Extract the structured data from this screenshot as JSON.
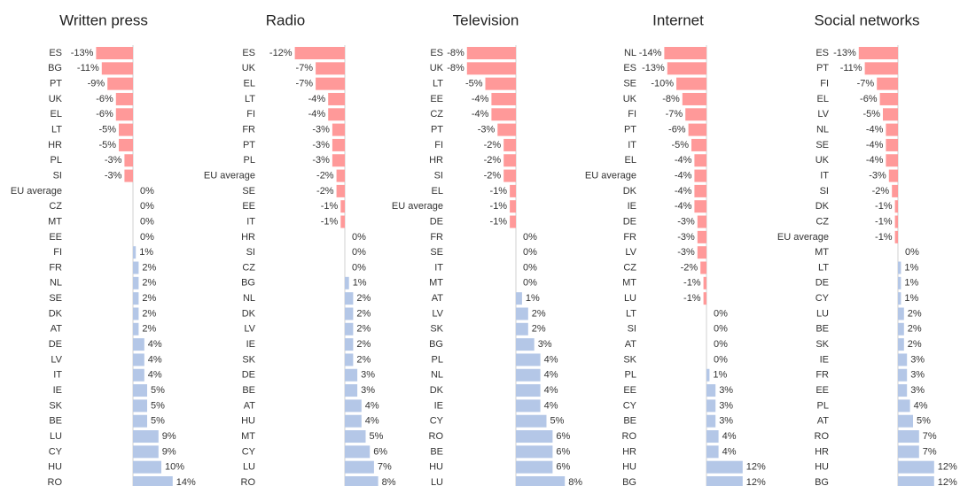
{
  "chart_data": [
    {
      "type": "bar",
      "orientation": "horizontal",
      "title": "Written press",
      "categories": [
        "ES",
        "BG",
        "PT",
        "UK",
        "EL",
        "LT",
        "HR",
        "PL",
        "SI",
        "EU average",
        "CZ",
        "MT",
        "EE",
        "FI",
        "FR",
        "NL",
        "SE",
        "DK",
        "AT",
        "DE",
        "LV",
        "IT",
        "IE",
        "SK",
        "BE",
        "LU",
        "CY",
        "HU",
        "RO"
      ],
      "values": [
        -13,
        -11,
        -9,
        -6,
        -6,
        -5,
        -5,
        -3,
        -3,
        0,
        0,
        0,
        0,
        1,
        2,
        2,
        2,
        2,
        2,
        4,
        4,
        4,
        5,
        5,
        5,
        9,
        9,
        10,
        14
      ],
      "value_labels": [
        "-13%",
        "-11%",
        "-9%",
        "-6%",
        "-6%",
        "-5%",
        "-5%",
        "-3%",
        "-3%",
        "0%",
        "0%",
        "0%",
        "0%",
        "1%",
        "2%",
        "2%",
        "2%",
        "2%",
        "2%",
        "4%",
        "4%",
        "4%",
        "5%",
        "5%",
        "5%",
        "9%",
        "9%",
        "10%",
        "14%"
      ],
      "xlim": [
        -15,
        15
      ],
      "negative_color": "#ff9999",
      "positive_color": "#b4c7e7"
    },
    {
      "type": "bar",
      "orientation": "horizontal",
      "title": "Radio",
      "categories": [
        "ES",
        "UK",
        "EL",
        "LT",
        "FI",
        "FR",
        "PT",
        "PL",
        "EU average",
        "SE",
        "EE",
        "IT",
        "HR",
        "SI",
        "CZ",
        "BG",
        "NL",
        "DK",
        "LV",
        "IE",
        "SK",
        "DE",
        "BE",
        "AT",
        "HU",
        "MT",
        "CY",
        "LU",
        "RO"
      ],
      "values": [
        -12,
        -7,
        -7,
        -4,
        -4,
        -3,
        -3,
        -3,
        -2,
        -2,
        -1,
        -1,
        0,
        0,
        0,
        1,
        2,
        2,
        2,
        2,
        2,
        3,
        3,
        4,
        4,
        5,
        6,
        7,
        8
      ],
      "value_labels": [
        "-12%",
        "-7%",
        "-7%",
        "-4%",
        "-4%",
        "-3%",
        "-3%",
        "-3%",
        "-2%",
        "-2%",
        "-1%",
        "-1%",
        "0%",
        "0%",
        "0%",
        "1%",
        "2%",
        "2%",
        "2%",
        "2%",
        "2%",
        "3%",
        "3%",
        "4%",
        "4%",
        "5%",
        "6%",
        "7%",
        "8%"
      ],
      "xlim": [
        -12,
        12
      ],
      "negative_color": "#ff9999",
      "positive_color": "#b4c7e7"
    },
    {
      "type": "bar",
      "orientation": "horizontal",
      "title": "Television",
      "categories": [
        "ES",
        "UK",
        "LT",
        "EE",
        "CZ",
        "PT",
        "FI",
        "HR",
        "SI",
        "EL",
        "EU average",
        "DE",
        "FR",
        "SE",
        "IT",
        "MT",
        "AT",
        "LV",
        "SK",
        "BG",
        "PL",
        "NL",
        "DK",
        "IE",
        "CY",
        "RO",
        "BE",
        "HU",
        "LU"
      ],
      "values": [
        -8,
        -8,
        -5,
        -4,
        -4,
        -3,
        -2,
        -2,
        -2,
        -1,
        -1,
        -1,
        0,
        0,
        0,
        0,
        1,
        2,
        2,
        3,
        4,
        4,
        4,
        4,
        5,
        6,
        6,
        6,
        8
      ],
      "value_labels": [
        "-8%",
        "-8%",
        "-5%",
        "-4%",
        "-4%",
        "-3%",
        "-2%",
        "-2%",
        "-2%",
        "-1%",
        "-1%",
        "-1%",
        "0%",
        "0%",
        "0%",
        "0%",
        "1%",
        "2%",
        "2%",
        "3%",
        "4%",
        "4%",
        "4%",
        "4%",
        "5%",
        "6%",
        "6%",
        "6%",
        "8%"
      ],
      "xlim": [
        -8,
        8
      ],
      "negative_color": "#ff9999",
      "positive_color": "#b4c7e7"
    },
    {
      "type": "bar",
      "orientation": "horizontal",
      "title": "Internet",
      "categories": [
        "NL",
        "ES",
        "SE",
        "UK",
        "FI",
        "PT",
        "IT",
        "EL",
        "EU average",
        "DK",
        "IE",
        "DE",
        "FR",
        "LV",
        "CZ",
        "MT",
        "LU",
        "LT",
        "SI",
        "AT",
        "SK",
        "PL",
        "EE",
        "CY",
        "BE",
        "RO",
        "HR",
        "HU",
        "BG"
      ],
      "values": [
        -14,
        -13,
        -10,
        -8,
        -7,
        -6,
        -5,
        -4,
        -4,
        -4,
        -4,
        -3,
        -3,
        -3,
        -2,
        -1,
        -1,
        0,
        0,
        0,
        0,
        1,
        3,
        3,
        3,
        4,
        4,
        12,
        12
      ],
      "value_labels": [
        "-14%",
        "-13%",
        "-10%",
        "-8%",
        "-7%",
        "-6%",
        "-5%",
        "-4%",
        "-4%",
        "-4%",
        "-4%",
        "-3%",
        "-3%",
        "-3%",
        "-2%",
        "-1%",
        "-1%",
        "0%",
        "0%",
        "0%",
        "0%",
        "1%",
        "3%",
        "3%",
        "3%",
        "4%",
        "4%",
        "12%",
        "12%"
      ],
      "xlim": [
        -14,
        14
      ],
      "negative_color": "#ff9999",
      "positive_color": "#b4c7e7"
    },
    {
      "type": "bar",
      "orientation": "horizontal",
      "title": "Social networks",
      "categories": [
        "ES",
        "PT",
        "FI",
        "EL",
        "LV",
        "NL",
        "SE",
        "UK",
        "IT",
        "SI",
        "DK",
        "CZ",
        "EU average",
        "MT",
        "LT",
        "DE",
        "CY",
        "LU",
        "BE",
        "SK",
        "IE",
        "FR",
        "EE",
        "PL",
        "AT",
        "RO",
        "HR",
        "HU",
        "BG"
      ],
      "values": [
        -13,
        -11,
        -7,
        -6,
        -5,
        -4,
        -4,
        -4,
        -3,
        -2,
        -1,
        -1,
        -1,
        0,
        1,
        1,
        1,
        2,
        2,
        2,
        3,
        3,
        3,
        4,
        5,
        7,
        7,
        12,
        12
      ],
      "value_labels": [
        "-13%",
        "-11%",
        "-7%",
        "-6%",
        "-5%",
        "-4%",
        "-4%",
        "-4%",
        "-3%",
        "-2%",
        "-1%",
        "-1%",
        "-1%",
        "0%",
        "1%",
        "1%",
        "1%",
        "2%",
        "2%",
        "2%",
        "3%",
        "3%",
        "3%",
        "4%",
        "5%",
        "7%",
        "7%",
        "12%",
        "12%"
      ],
      "xlim": [
        -13,
        13
      ],
      "negative_color": "#ff9999",
      "positive_color": "#b4c7e7"
    }
  ]
}
